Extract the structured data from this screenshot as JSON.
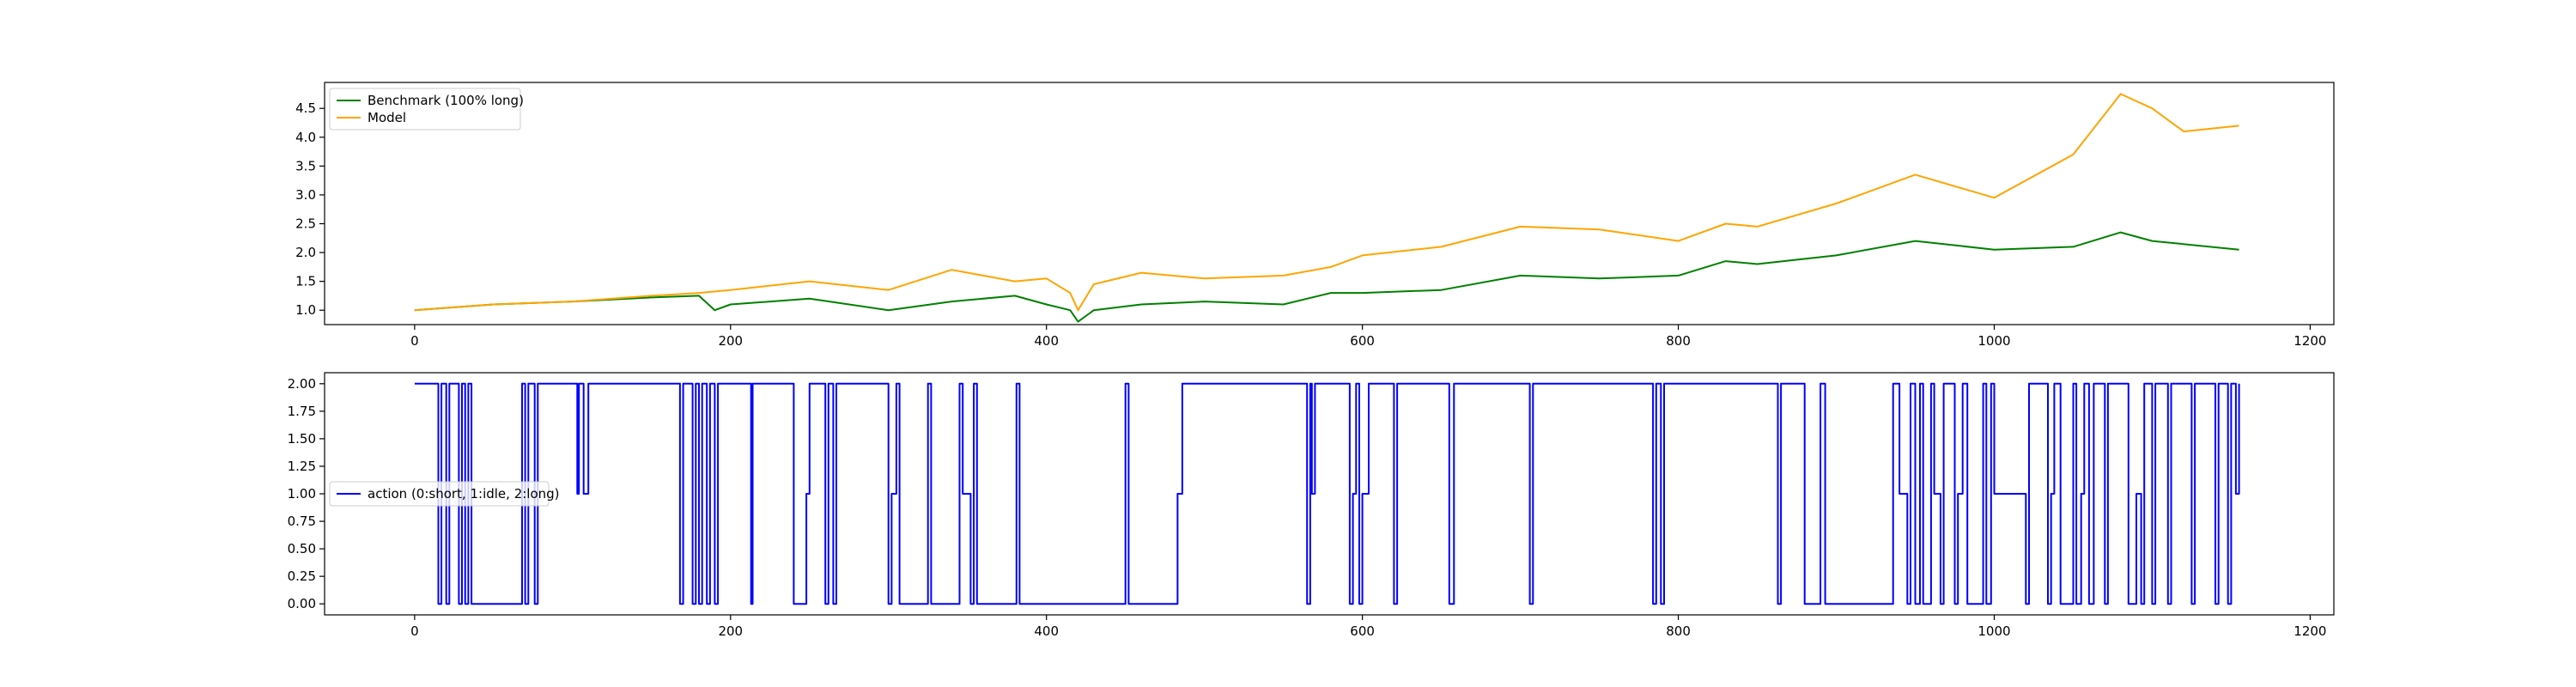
{
  "chart_data": [
    {
      "type": "line",
      "title": "",
      "xlabel": "",
      "ylabel": "",
      "xlim": [
        -57,
        1215
      ],
      "ylim": [
        0.75,
        4.95
      ],
      "xticks": [
        0,
        200,
        400,
        600,
        800,
        1000,
        1200
      ],
      "xtick_labels": [
        "0",
        "200",
        "400",
        "600",
        "800",
        "1000",
        "1200"
      ],
      "yticks": [
        1.0,
        1.5,
        2.0,
        2.5,
        3.0,
        3.5,
        4.0,
        4.5
      ],
      "ytick_labels": [
        "1.0",
        "1.5",
        "2.0",
        "2.5",
        "3.0",
        "3.5",
        "4.0",
        "4.5"
      ],
      "grid": false,
      "legend_position": "upper left",
      "series": [
        {
          "name": "Benchmark (100% long)",
          "color": "#008000",
          "x": [
            0,
            50,
            100,
            150,
            180,
            190,
            200,
            250,
            300,
            340,
            380,
            400,
            415,
            420,
            430,
            460,
            500,
            550,
            580,
            600,
            650,
            700,
            750,
            800,
            830,
            850,
            900,
            950,
            1000,
            1050,
            1080,
            1100,
            1155
          ],
          "y": [
            1.0,
            1.1,
            1.15,
            1.22,
            1.25,
            1.0,
            1.1,
            1.2,
            1.0,
            1.15,
            1.25,
            1.1,
            1.0,
            0.8,
            1.0,
            1.1,
            1.15,
            1.1,
            1.3,
            1.3,
            1.35,
            1.6,
            1.55,
            1.6,
            1.85,
            1.8,
            1.95,
            2.2,
            2.05,
            2.1,
            2.35,
            2.2,
            2.05
          ]
        },
        {
          "name": "Model",
          "color": "#ffa500",
          "x": [
            0,
            50,
            100,
            150,
            180,
            200,
            250,
            300,
            340,
            380,
            400,
            415,
            420,
            430,
            460,
            500,
            550,
            580,
            600,
            650,
            700,
            750,
            800,
            830,
            850,
            900,
            950,
            1000,
            1050,
            1080,
            1100,
            1120,
            1155
          ],
          "y": [
            1.0,
            1.1,
            1.15,
            1.25,
            1.3,
            1.35,
            1.5,
            1.35,
            1.7,
            1.5,
            1.55,
            1.3,
            1.0,
            1.45,
            1.65,
            1.55,
            1.6,
            1.75,
            1.95,
            2.1,
            2.45,
            2.4,
            2.2,
            2.5,
            2.45,
            2.85,
            3.35,
            2.95,
            3.7,
            4.75,
            4.5,
            4.1,
            4.2
          ]
        }
      ]
    },
    {
      "type": "line",
      "title": "",
      "xlabel": "",
      "ylabel": "",
      "xlim": [
        -57,
        1215
      ],
      "ylim": [
        -0.1,
        2.1
      ],
      "xticks": [
        0,
        200,
        400,
        600,
        800,
        1000,
        1200
      ],
      "xtick_labels": [
        "0",
        "200",
        "400",
        "600",
        "800",
        "1000",
        "1200"
      ],
      "yticks": [
        0.0,
        0.25,
        0.5,
        0.75,
        1.0,
        1.25,
        1.5,
        1.75,
        2.0
      ],
      "ytick_labels": [
        "0.00",
        "0.25",
        "0.50",
        "0.75",
        "1.00",
        "1.25",
        "1.50",
        "1.75",
        "2.00"
      ],
      "grid": false,
      "legend_position": "center left",
      "series": [
        {
          "name": "action (0:short, 1:idle, 2:long)",
          "color": "#0000ff",
          "drawstyle": "steps",
          "x": [
            0,
            15,
            17,
            20,
            22,
            28,
            30,
            32,
            34,
            36,
            68,
            70,
            72,
            76,
            78,
            103,
            104,
            107,
            110,
            168,
            170,
            176,
            178,
            180,
            182,
            185,
            187,
            190,
            192,
            213,
            214,
            240,
            248,
            250,
            260,
            262,
            265,
            267,
            300,
            302,
            305,
            307,
            325,
            327,
            345,
            347,
            352,
            354,
            356,
            381,
            383,
            450,
            452,
            483,
            486,
            565,
            567,
            568,
            570,
            592,
            594,
            596,
            598,
            600,
            604,
            620,
            622,
            655,
            658,
            706,
            708,
            784,
            786,
            789,
            791,
            863,
            865,
            880,
            890,
            893,
            936,
            940,
            945,
            947,
            950,
            953,
            955,
            960,
            962,
            966,
            968,
            975,
            977,
            980,
            983,
            993,
            995,
            998,
            1000,
            1020,
            1022,
            1034,
            1036,
            1038,
            1042,
            1050,
            1052,
            1055,
            1057,
            1060,
            1063,
            1070,
            1072,
            1085,
            1090,
            1093,
            1095,
            1100,
            1102,
            1110,
            1112,
            1125,
            1127,
            1140,
            1142,
            1148,
            1150,
            1153,
            1155
          ],
          "y": [
            2,
            0,
            2,
            0,
            2,
            0,
            2,
            0,
            2,
            0,
            2,
            0,
            2,
            0,
            2,
            1,
            2,
            1,
            2,
            0,
            2,
            0,
            2,
            0,
            2,
            0,
            2,
            0,
            2,
            0,
            2,
            0,
            1,
            2,
            0,
            2,
            0,
            2,
            0,
            1,
            2,
            0,
            2,
            0,
            2,
            1,
            0,
            2,
            0,
            2,
            0,
            2,
            0,
            1,
            2,
            0,
            2,
            1,
            2,
            0,
            1,
            2,
            0,
            1,
            2,
            0,
            2,
            0,
            2,
            0,
            2,
            0,
            2,
            0,
            2,
            0,
            2,
            0,
            2,
            0,
            2,
            1,
            0,
            2,
            0,
            2,
            0,
            2,
            1,
            0,
            2,
            0,
            1,
            2,
            0,
            2,
            0,
            2,
            1,
            0,
            2,
            0,
            1,
            2,
            0,
            2,
            0,
            1,
            2,
            0,
            2,
            0,
            2,
            0,
            1,
            0,
            2,
            0,
            2,
            0,
            2,
            0,
            2,
            0,
            2,
            0,
            2,
            1,
            2
          ]
        }
      ]
    }
  ]
}
